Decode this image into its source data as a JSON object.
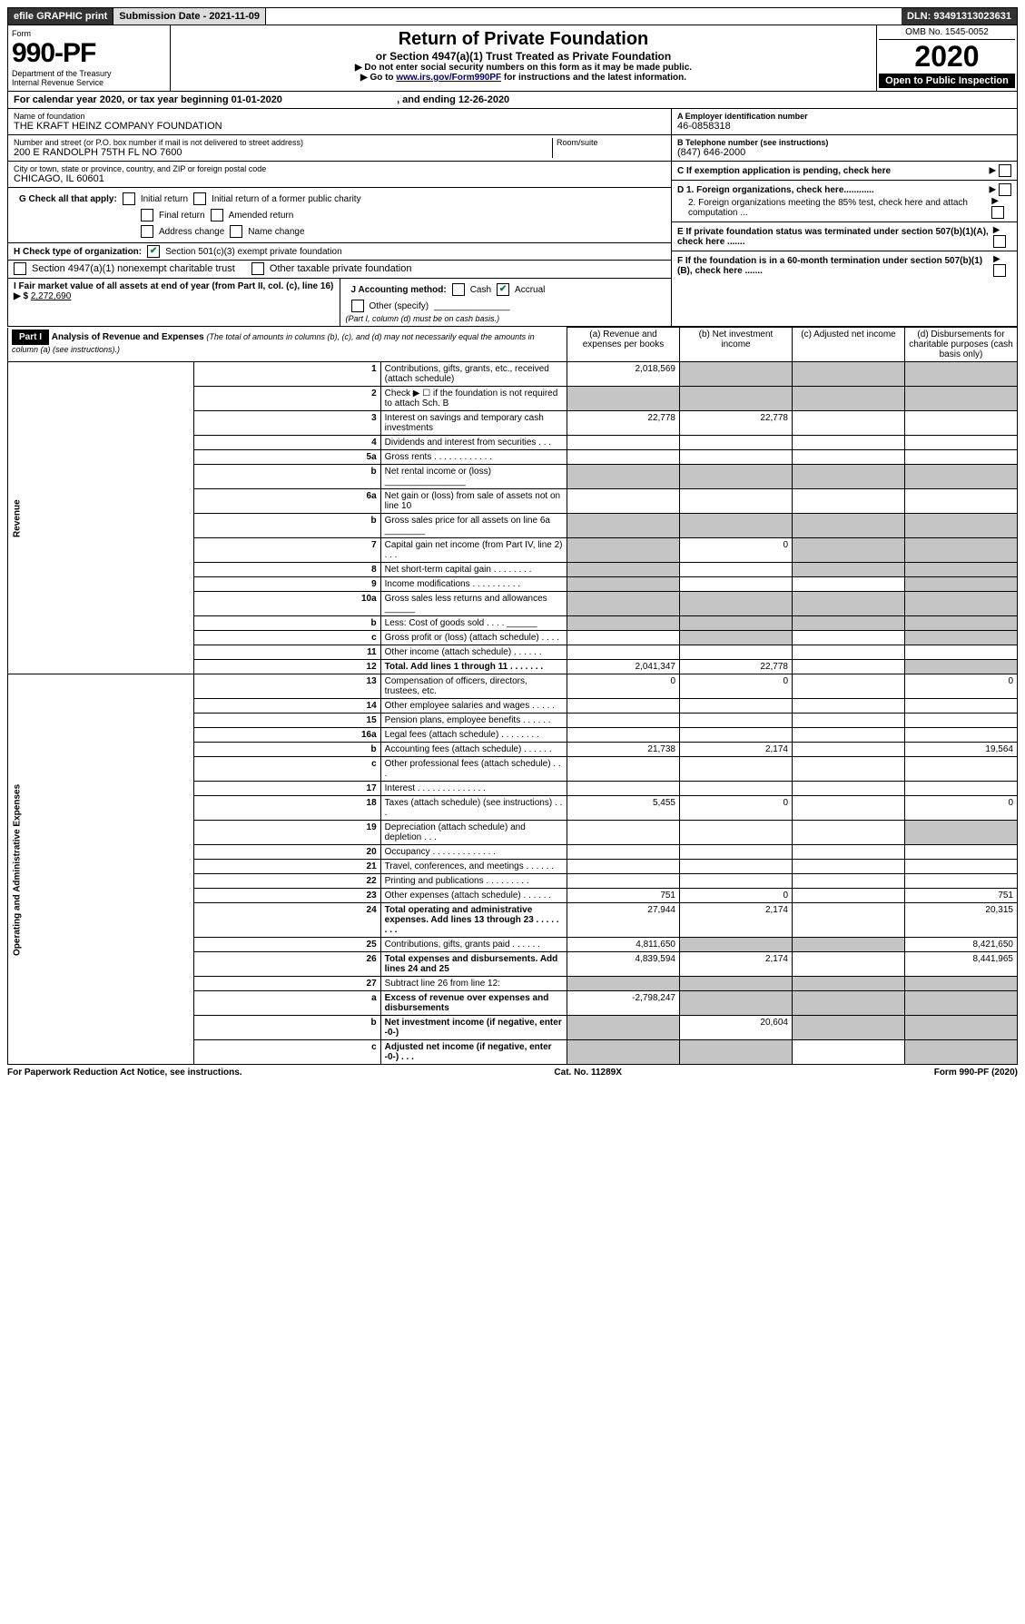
{
  "topbar": {
    "efile": "efile GRAPHIC print",
    "sub_label": "Submission Date - 2021-11-09",
    "dln": "DLN: 93491313023631"
  },
  "header": {
    "form_label": "Form",
    "form_num": "990-PF",
    "dept": "Department of the Treasury\nInternal Revenue Service",
    "title": "Return of Private Foundation",
    "subtitle": "or Section 4947(a)(1) Trust Treated as Private Foundation",
    "note1": "▶ Do not enter social security numbers on this form as it may be made public.",
    "note2_pre": "▶ Go to ",
    "note2_link": "www.irs.gov/Form990PF",
    "note2_post": " for instructions and the latest information.",
    "omb": "OMB No. 1545-0052",
    "year": "2020",
    "open": "Open to Public Inspection"
  },
  "cal": {
    "text_pre": "For calendar year 2020, or tax year beginning ",
    "begin": "01-01-2020",
    "mid": " , and ending ",
    "end": "12-26-2020"
  },
  "foundation": {
    "name_lbl": "Name of foundation",
    "name": "THE KRAFT HEINZ COMPANY FOUNDATION",
    "addr_lbl": "Number and street (or P.O. box number if mail is not delivered to street address)",
    "addr": "200 E RANDOLPH 75TH FL NO 7600",
    "room_lbl": "Room/suite",
    "city_lbl": "City or town, state or province, country, and ZIP or foreign postal code",
    "city": "CHICAGO, IL  60601"
  },
  "right": {
    "a_lbl": "A Employer identification number",
    "a_val": "46-0858318",
    "b_lbl": "B Telephone number (see instructions)",
    "b_val": "(847) 646-2000",
    "c_lbl": "C If exemption application is pending, check here",
    "d1": "D 1. Foreign organizations, check here............",
    "d2": "2. Foreign organizations meeting the 85% test, check here and attach computation ...",
    "e": "E If private foundation status was terminated under section 507(b)(1)(A), check here .......",
    "f": "F If the foundation is in a 60-month termination under section 507(b)(1)(B), check here .......",
    "arrow": "▶"
  },
  "g": {
    "label": "G Check all that apply:",
    "opts": [
      "Initial return",
      "Initial return of a former public charity",
      "Final return",
      "Amended return",
      "Address change",
      "Name change"
    ]
  },
  "h": {
    "label": "H Check type of organization:",
    "o1": "Section 501(c)(3) exempt private foundation",
    "o2": "Section 4947(a)(1) nonexempt charitable trust",
    "o3": "Other taxable private foundation"
  },
  "i": {
    "label": "I Fair market value of all assets at end of year (from Part II, col. (c), line 16) ▶ $",
    "val": "2,272,690"
  },
  "j": {
    "label": "J Accounting method:",
    "cash": "Cash",
    "accrual": "Accrual",
    "other": "Other (specify)",
    "note": "(Part I, column (d) must be on cash basis.)"
  },
  "part1": {
    "label": "Part I",
    "title": "Analysis of Revenue and Expenses",
    "note": "(The total of amounts in columns (b), (c), and (d) may not necessarily equal the amounts in column (a) (see instructions).)",
    "col_a": "(a) Revenue and expenses per books",
    "col_b": "(b) Net investment income",
    "col_c": "(c) Adjusted net income",
    "col_d": "(d) Disbursements for charitable purposes (cash basis only)"
  },
  "revenue_label": "Revenue",
  "expenses_label": "Operating and Administrative Expenses",
  "rows": {
    "r1": {
      "n": "1",
      "d": "Contributions, gifts, grants, etc., received (attach schedule)",
      "a": "2,018,569"
    },
    "r2": {
      "n": "2",
      "d": "Check ▶ ☐ if the foundation is not required to attach Sch. B"
    },
    "r3": {
      "n": "3",
      "d": "Interest on savings and temporary cash investments",
      "a": "22,778",
      "b": "22,778"
    },
    "r4": {
      "n": "4",
      "d": "Dividends and interest from securities   .  .  ."
    },
    "r5a": {
      "n": "5a",
      "d": "Gross rents   .  .  .  .  .  .  .  .  .  .  .  ."
    },
    "r5b": {
      "n": "b",
      "d": "Net rental income or (loss) ________________"
    },
    "r6a": {
      "n": "6a",
      "d": "Net gain or (loss) from sale of assets not on line 10"
    },
    "r6b": {
      "n": "b",
      "d": "Gross sales price for all assets on line 6a ________"
    },
    "r7": {
      "n": "7",
      "d": "Capital gain net income (from Part IV, line 2)   .  .  .",
      "b": "0"
    },
    "r8": {
      "n": "8",
      "d": "Net short-term capital gain   .  .  .  .  .  .  .  ."
    },
    "r9": {
      "n": "9",
      "d": "Income modifications   .  .  .  .  .  .  .  .  .  ."
    },
    "r10a": {
      "n": "10a",
      "d": "Gross sales less returns and allowances  ______"
    },
    "r10b": {
      "n": "b",
      "d": "Less: Cost of goods sold   .  .  .  .  ______"
    },
    "r10c": {
      "n": "c",
      "d": "Gross profit or (loss) (attach schedule)   .  .  .  ."
    },
    "r11": {
      "n": "11",
      "d": "Other income (attach schedule)   .  .  .  .  .  ."
    },
    "r12": {
      "n": "12",
      "d": "Total. Add lines 1 through 11   .  .  .  .  .  .  .",
      "a": "2,041,347",
      "b": "22,778"
    },
    "r13": {
      "n": "13",
      "d": "Compensation of officers, directors, trustees, etc.",
      "a": "0",
      "b": "0",
      "dd": "0"
    },
    "r14": {
      "n": "14",
      "d": "Other employee salaries and wages   .  .  .  .  ."
    },
    "r15": {
      "n": "15",
      "d": "Pension plans, employee benefits   .  .  .  .  .  ."
    },
    "r16a": {
      "n": "16a",
      "d": "Legal fees (attach schedule)   .  .  .  .  .  .  .  ."
    },
    "r16b": {
      "n": "b",
      "d": "Accounting fees (attach schedule)   .  .  .  .  .  .",
      "a": "21,738",
      "b": "2,174",
      "dd": "19,564"
    },
    "r16c": {
      "n": "c",
      "d": "Other professional fees (attach schedule)   .  .  ."
    },
    "r17": {
      "n": "17",
      "d": "Interest   .  .  .  .  .  .  .  .  .  .  .  .  .  ."
    },
    "r18": {
      "n": "18",
      "d": "Taxes (attach schedule) (see instructions)   .  .  .",
      "a": "5,455",
      "b": "0",
      "dd": "0"
    },
    "r19": {
      "n": "19",
      "d": "Depreciation (attach schedule) and depletion   .  .  ."
    },
    "r20": {
      "n": "20",
      "d": "Occupancy   .  .  .  .  .  .  .  .  .  .  .  .  ."
    },
    "r21": {
      "n": "21",
      "d": "Travel, conferences, and meetings   .  .  .  .  .  ."
    },
    "r22": {
      "n": "22",
      "d": "Printing and publications   .  .  .  .  .  .  .  .  ."
    },
    "r23": {
      "n": "23",
      "d": "Other expenses (attach schedule)   .  .  .  .  .  .",
      "a": "751",
      "b": "0",
      "dd": "751"
    },
    "r24": {
      "n": "24",
      "d": "Total operating and administrative expenses. Add lines 13 through 23   .  .  .  .  .  .  .  .",
      "a": "27,944",
      "b": "2,174",
      "dd": "20,315"
    },
    "r25": {
      "n": "25",
      "d": "Contributions, gifts, grants paid   .  .  .  .  .  .",
      "a": "4,811,650",
      "dd": "8,421,650"
    },
    "r26": {
      "n": "26",
      "d": "Total expenses and disbursements. Add lines 24 and 25",
      "a": "4,839,594",
      "b": "2,174",
      "dd": "8,441,965"
    },
    "r27": {
      "n": "27",
      "d": "Subtract line 26 from line 12:"
    },
    "r27a": {
      "n": "a",
      "d": "Excess of revenue over expenses and disbursements",
      "a": "-2,798,247"
    },
    "r27b": {
      "n": "b",
      "d": "Net investment income (if negative, enter -0-)",
      "b": "20,604"
    },
    "r27c": {
      "n": "c",
      "d": "Adjusted net income (if negative, enter -0-)   .  .  ."
    }
  },
  "footer": {
    "left": "For Paperwork Reduction Act Notice, see instructions.",
    "mid": "Cat. No. 11289X",
    "right": "Form 990-PF (2020)"
  },
  "colors": {
    "shade": "#c5c5c5",
    "check_green": "#0a7a3b",
    "link": "#004488"
  }
}
